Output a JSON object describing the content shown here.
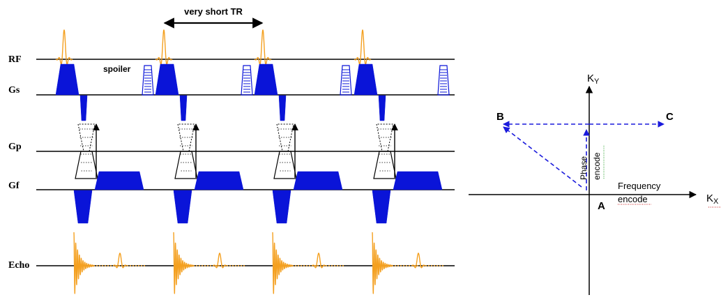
{
  "sequence": {
    "tr_label": "very short TR",
    "spoiler_label": "spoiler",
    "rows": {
      "rf": "RF",
      "gs": "Gs",
      "gp": "Gp",
      "gf": "Gf",
      "echo": "Echo"
    }
  },
  "kspace": {
    "ky_main": "K",
    "ky_sub": "Y",
    "kx_main": "K",
    "kx_sub": "X",
    "point_a": "A",
    "point_b": "B",
    "point_c": "C",
    "phase_word": "Phase",
    "encode_word": "encode",
    "frequency_word": "Frequency",
    "frequency_encode_word": "encode"
  },
  "colors": {
    "rf_echo": "#f4a020",
    "gradient": "#0a14d8",
    "trajectory": "#1a1adc"
  }
}
